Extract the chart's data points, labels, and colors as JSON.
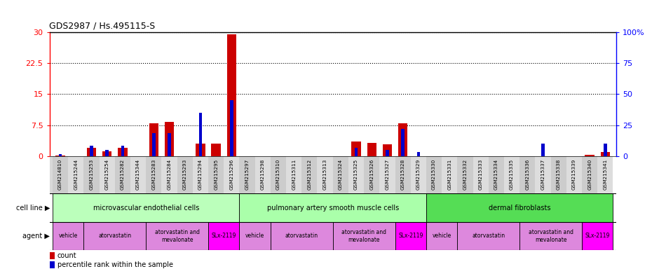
{
  "title": "GDS2987 / Hs.495115-S",
  "samples": [
    "GSM214810",
    "GSM215244",
    "GSM215253",
    "GSM215254",
    "GSM215282",
    "GSM215344",
    "GSM215283",
    "GSM215284",
    "GSM215293",
    "GSM215294",
    "GSM215295",
    "GSM215296",
    "GSM215297",
    "GSM215298",
    "GSM215310",
    "GSM215311",
    "GSM215312",
    "GSM215313",
    "GSM215324",
    "GSM215325",
    "GSM215326",
    "GSM215327",
    "GSM215328",
    "GSM215329",
    "GSM215330",
    "GSM215331",
    "GSM215332",
    "GSM215333",
    "GSM215334",
    "GSM215335",
    "GSM215336",
    "GSM215337",
    "GSM215338",
    "GSM215339",
    "GSM215340",
    "GSM215341"
  ],
  "red_values": [
    0.2,
    0.0,
    2.0,
    1.2,
    2.0,
    0.0,
    8.0,
    8.2,
    0.0,
    3.0,
    3.0,
    29.5,
    0.0,
    0.0,
    0.0,
    0.0,
    0.0,
    0.0,
    0.0,
    3.5,
    3.2,
    2.8,
    8.0,
    0.0,
    0.0,
    0.0,
    0.0,
    0.0,
    0.0,
    0.0,
    0.0,
    0.0,
    0.0,
    0.0,
    0.3,
    1.0
  ],
  "blue_values": [
    0.5,
    0.0,
    2.5,
    1.5,
    2.5,
    0.0,
    5.5,
    5.5,
    0.0,
    10.5,
    0.0,
    13.5,
    0.0,
    0.0,
    0.0,
    0.0,
    0.0,
    0.0,
    0.0,
    2.0,
    0.0,
    1.5,
    6.5,
    1.0,
    0.0,
    0.0,
    0.0,
    0.0,
    0.0,
    0.0,
    0.0,
    3.0,
    0.0,
    0.0,
    0.0,
    3.0
  ],
  "ylim_left": [
    0,
    30
  ],
  "ylim_right": [
    0,
    100
  ],
  "yticks_left": [
    0,
    7.5,
    15,
    22.5,
    30
  ],
  "yticks_right": [
    0,
    25,
    50,
    75,
    100
  ],
  "ytick_labels_left": [
    "0",
    "7.5",
    "15",
    "22.5",
    "30"
  ],
  "ytick_labels_right": [
    "0",
    "25",
    "50",
    "75",
    "100%"
  ],
  "cell_line_groups": [
    {
      "label": "microvascular endothelial cells",
      "start": 0,
      "end": 11,
      "color": "#CCFFCC"
    },
    {
      "label": "pulmonary artery smooth muscle cells",
      "start": 12,
      "end": 23,
      "color": "#AAFFAA"
    },
    {
      "label": "dermal fibroblasts",
      "start": 24,
      "end": 35,
      "color": "#44DD44"
    }
  ],
  "agent_groups": [
    {
      "label": "vehicle",
      "start": 0,
      "end": 1,
      "color": "#EE88EE"
    },
    {
      "label": "atorvastatin",
      "start": 2,
      "end": 5,
      "color": "#EE88EE"
    },
    {
      "label": "atorvastatin and\nmevalonate",
      "start": 6,
      "end": 9,
      "color": "#EE88EE"
    },
    {
      "label": "SLx-2119",
      "start": 10,
      "end": 11,
      "color": "#FF00FF"
    },
    {
      "label": "vehicle",
      "start": 12,
      "end": 13,
      "color": "#EE88EE"
    },
    {
      "label": "atorvastatin",
      "start": 14,
      "end": 17,
      "color": "#EE88EE"
    },
    {
      "label": "atorvastatin and\nmevalonate",
      "start": 18,
      "end": 21,
      "color": "#EE88EE"
    },
    {
      "label": "SLx-2119",
      "start": 22,
      "end": 23,
      "color": "#FF00FF"
    },
    {
      "label": "vehicle",
      "start": 24,
      "end": 25,
      "color": "#EE88EE"
    },
    {
      "label": "atorvastatin",
      "start": 26,
      "end": 29,
      "color": "#EE88EE"
    },
    {
      "label": "atorvastatin and\nmevalonate",
      "start": 30,
      "end": 33,
      "color": "#EE88EE"
    },
    {
      "label": "SLx-2119",
      "start": 34,
      "end": 35,
      "color": "#FF00FF"
    }
  ],
  "red_color": "#CC0000",
  "blue_color": "#0000CC",
  "bg_color": "#FFFFFF",
  "tick_label_color_left": "#FF0000",
  "tick_label_color_right": "#0000FF",
  "cell_line_label": "cell line ▶",
  "agent_label": "agent ▶",
  "legend_count": "count",
  "legend_percentile": "percentile rank within the sample"
}
